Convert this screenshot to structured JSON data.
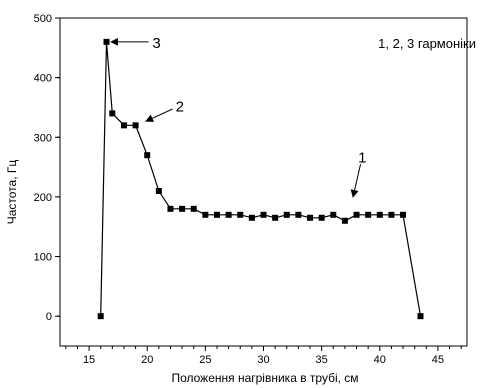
{
  "chart_data": {
    "type": "line",
    "title": "",
    "xlabel": "Положення нагрівника в трубі, см",
    "ylabel": "Частота, Гц",
    "xlim": [
      12.5,
      47.5
    ],
    "ylim": [
      -50,
      500
    ],
    "xticks": [
      15,
      20,
      25,
      30,
      35,
      40,
      45
    ],
    "yticks": [
      0,
      100,
      200,
      300,
      400,
      500
    ],
    "grid": false,
    "legend_text": "1, 2, 3 гармоніки",
    "series": [
      {
        "marker": "square",
        "color": "#000000",
        "x": [
          16,
          16.5,
          17,
          18,
          19,
          20,
          21,
          22,
          23,
          24,
          25,
          26,
          27,
          28,
          29,
          30,
          31,
          32,
          33,
          34,
          35,
          36,
          37,
          38,
          39,
          40,
          41,
          42,
          43.5
        ],
        "y": [
          0,
          460,
          340,
          320,
          320,
          270,
          210,
          180,
          180,
          180,
          170,
          170,
          170,
          170,
          165,
          170,
          165,
          170,
          170,
          165,
          165,
          170,
          160,
          170,
          170,
          170,
          170,
          170,
          0
        ]
      }
    ],
    "annotations": [
      {
        "text": "3",
        "x": 20.8,
        "y": 460,
        "arrow_to": [
          16.9,
          460
        ]
      },
      {
        "text": "2",
        "x": 22.8,
        "y": 353,
        "arrow_to": [
          19.9,
          327
        ]
      },
      {
        "text": "1",
        "x": 38.5,
        "y": 268,
        "arrow_to": [
          37.7,
          200
        ]
      }
    ]
  }
}
